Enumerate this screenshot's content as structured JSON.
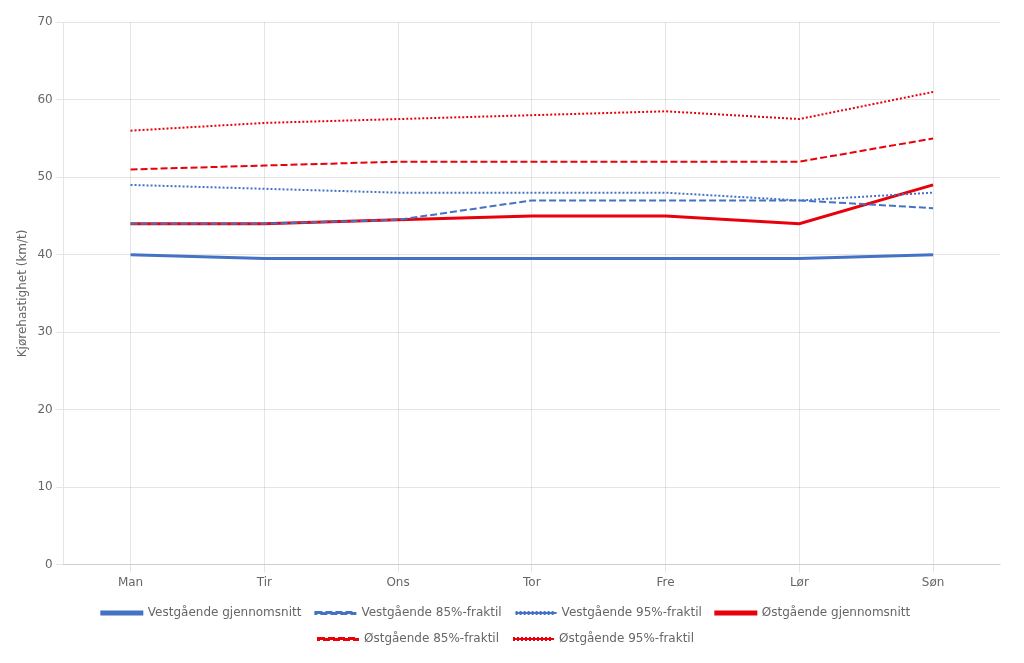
{
  "chart_data": {
    "type": "line",
    "categories": [
      "Man",
      "Tir",
      "Ons",
      "Tor",
      "Fre",
      "Lør",
      "Søn"
    ],
    "ylabel": "Kjørehastighet (km/t)",
    "ylim": [
      0,
      70
    ],
    "yticks": [
      0,
      10,
      20,
      30,
      40,
      50,
      60,
      70
    ],
    "grid": true,
    "legend": "bottom",
    "series": [
      {
        "name": "Vestgående gjennomsnitt",
        "color": "#4472C4",
        "line_style": "solid",
        "values": [
          40.0,
          39.5,
          39.5,
          39.5,
          39.5,
          39.5,
          40.0
        ]
      },
      {
        "name": "Vestgående 85%-fraktil",
        "color": "#4472C4",
        "line_style": "dashed",
        "values": [
          44.0,
          44.0,
          44.5,
          47.0,
          47.0,
          47.0,
          46.0
        ]
      },
      {
        "name": "Vestgående 95%-fraktil",
        "color": "#4472C4",
        "line_style": "dotted",
        "values": [
          49.0,
          48.5,
          48.0,
          48.0,
          48.0,
          47.0,
          48.0
        ]
      },
      {
        "name": "Østgående gjennomsnitt",
        "color": "#E8000A",
        "line_style": "solid",
        "values": [
          44.0,
          44.0,
          44.5,
          45.0,
          45.0,
          44.0,
          49.0
        ]
      },
      {
        "name": "Østgående 85%-fraktil",
        "color": "#E8000A",
        "line_style": "dashed",
        "values": [
          51.0,
          51.5,
          52.0,
          52.0,
          52.0,
          52.0,
          55.0
        ]
      },
      {
        "name": "Østgående 95%-fraktil",
        "color": "#E8000A",
        "line_style": "dotted",
        "values": [
          56.0,
          57.0,
          57.5,
          58.0,
          58.5,
          57.5,
          61.0
        ]
      }
    ]
  }
}
